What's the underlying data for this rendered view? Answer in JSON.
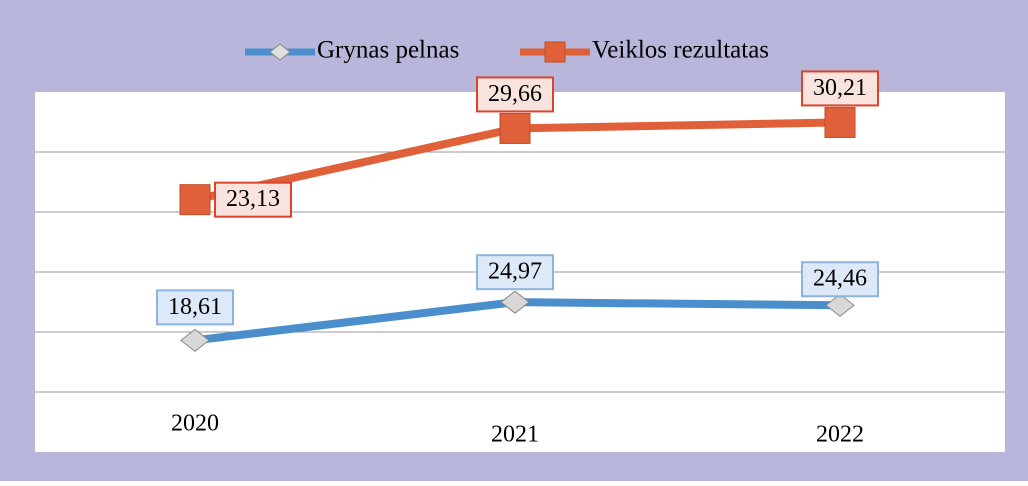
{
  "chart_data": {
    "type": "line",
    "categories": [
      "2020",
      "2021",
      "2022"
    ],
    "series": [
      {
        "name": "Grynas pelnas",
        "color": "#4a8fcb",
        "values": [
          18.61,
          24.97,
          24.46
        ],
        "value_labels": [
          "18,61",
          "24,97",
          "24,46"
        ]
      },
      {
        "name": "Veiklos rezultatas",
        "color": "#e0603a",
        "values": [
          23.13,
          29.66,
          30.21
        ],
        "value_labels": [
          "23,13",
          "29,66",
          "30,21"
        ],
        "axis": "y2"
      }
    ],
    "ylim": [
      0,
      60
    ],
    "y2lim": [
      0,
      33
    ],
    "legend": "top"
  }
}
